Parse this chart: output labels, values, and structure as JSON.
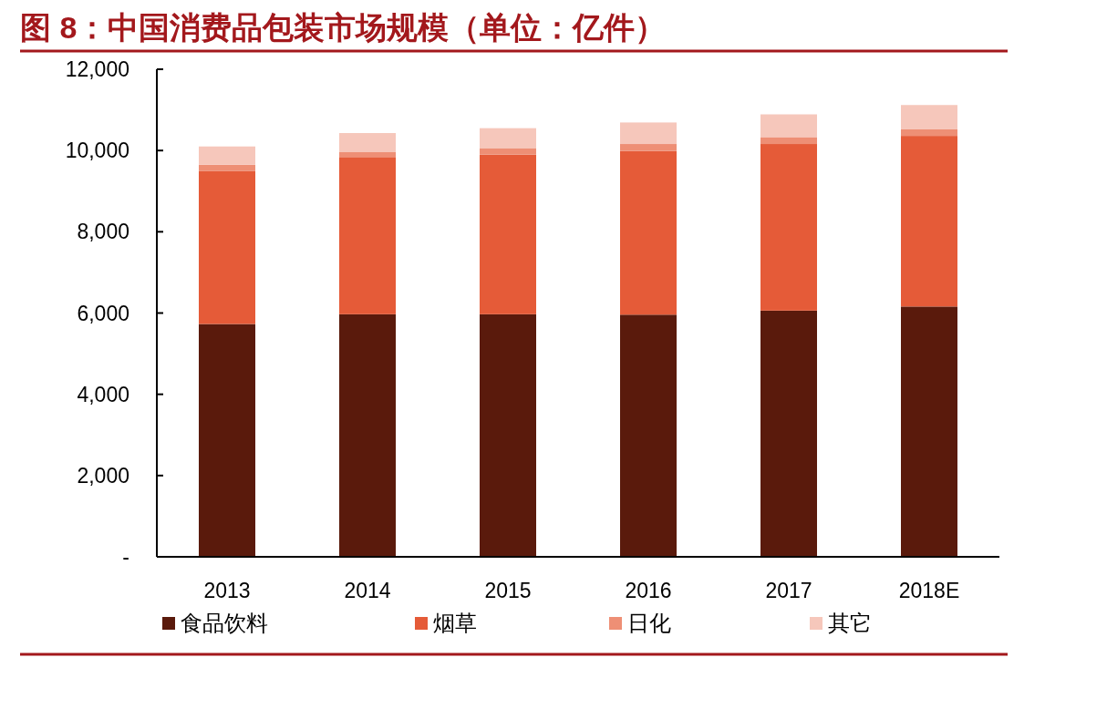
{
  "chart_data": {
    "type": "bar",
    "title": "图 8：中国消费品包装市场规模（单位：亿件）",
    "stacked": true,
    "categories": [
      "2013",
      "2014",
      "2015",
      "2016",
      "2017",
      "2018E"
    ],
    "series": [
      {
        "name": "食品饮料",
        "color": "#5a1a0c",
        "values": [
          5730,
          5970,
          5970,
          5960,
          6060,
          6160
        ]
      },
      {
        "name": "烟草",
        "color": "#e55b38",
        "values": [
          3770,
          3870,
          3930,
          4030,
          4100,
          4200
        ]
      },
      {
        "name": "日化",
        "color": "#ee8f75",
        "values": [
          150,
          130,
          160,
          170,
          170,
          160
        ]
      },
      {
        "name": "其它",
        "color": "#f6c7bb",
        "values": [
          450,
          460,
          490,
          530,
          560,
          600
        ]
      }
    ],
    "ylim": [
      0,
      12000
    ],
    "yticks": [
      {
        "value": 0,
        "label": "-"
      },
      {
        "value": 2000,
        "label": "2,000"
      },
      {
        "value": 4000,
        "label": "4,000"
      },
      {
        "value": 6000,
        "label": "6,000"
      },
      {
        "value": 8000,
        "label": "8,000"
      },
      {
        "value": 10000,
        "label": "10,000"
      },
      {
        "value": 12000,
        "label": "12,000"
      }
    ],
    "grid": false,
    "legend": "bottom"
  }
}
